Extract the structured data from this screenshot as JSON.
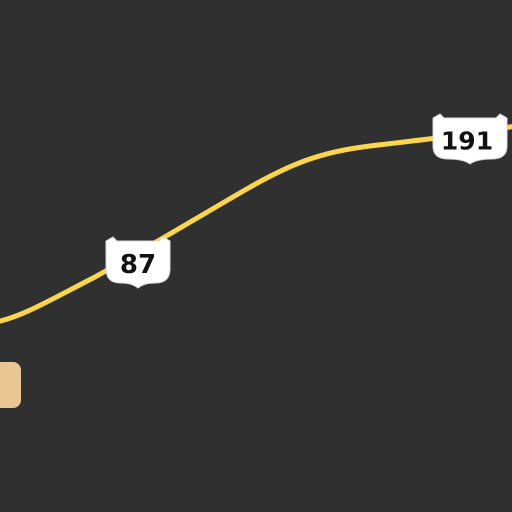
{
  "map": {
    "background_color": "#303030",
    "route_color": "#fbd54b",
    "land_patch_color": "#e8c795",
    "shields": [
      {
        "type": "us-route",
        "number": "87",
        "icon": "us-route-shield-icon"
      },
      {
        "type": "us-route",
        "number": "191",
        "icon": "us-route-shield-icon"
      }
    ]
  }
}
